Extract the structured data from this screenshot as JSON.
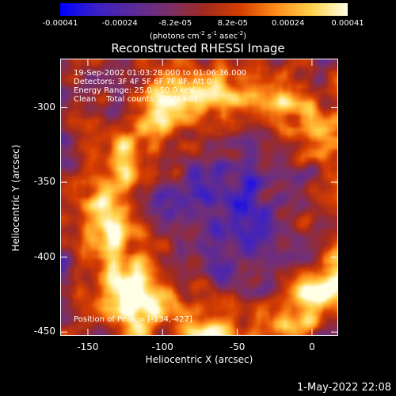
{
  "colorbar": {
    "ticks": [
      {
        "label": "-0.00041",
        "value": -0.00041
      },
      {
        "label": "-0.00024",
        "value": -0.00024
      },
      {
        "label": "-8.2e-05",
        "value": -8.2e-05
      },
      {
        "label": "8.2e-05",
        "value": 8.2e-05
      },
      {
        "label": "0.00024",
        "value": 0.00024
      },
      {
        "label": "0.00041",
        "value": 0.00041
      }
    ],
    "unit_main": "(photons cm",
    "unit_sup1": "-2",
    "unit_mid": " s",
    "unit_sup2": "-1",
    "unit_end": " asec",
    "unit_sup3": "-2",
    "unit_close": ")",
    "range": [
      -0.00041,
      0.00041
    ],
    "colors": [
      "#0000ff",
      "#3a20c8",
      "#5a2a9a",
      "#7a2f6a",
      "#a02a20",
      "#d63d00",
      "#ff8c1a",
      "#ffd24a",
      "#ffffe6"
    ]
  },
  "title": "Reconstructed RHESSI Image",
  "annotations": {
    "line1": "19-Sep-2002 01:03:28.000 to 01:06:36.000",
    "line2": "Detectors: 3F 4F 5F 6F 7F 8F, Att 0",
    "line3": "Energy Range: 25.0 - 50.0 keV",
    "line4": "Clean    Total counts: 2.57E+03",
    "peak": "Position of Peak = [-134,-427]"
  },
  "axes": {
    "xlabel": "Heliocentric X (arcsec)",
    "ylabel": "Heliocentric Y (arcsec)",
    "xlim": [
      -168,
      17
    ],
    "ylim": [
      -452,
      -268
    ],
    "xticks": [
      {
        "label": "-150",
        "value": -150
      },
      {
        "label": "-100",
        "value": -100
      },
      {
        "label": "-50",
        "value": -50
      },
      {
        "label": "0",
        "value": 0
      }
    ],
    "yticks": [
      {
        "label": "-300",
        "value": -300
      },
      {
        "label": "-350",
        "value": -350
      },
      {
        "label": "-400",
        "value": -400
      },
      {
        "label": "-450",
        "value": -450
      }
    ]
  },
  "peak": {
    "x": -134,
    "y": -427
  },
  "footer": "1-May-2022 22:08"
}
